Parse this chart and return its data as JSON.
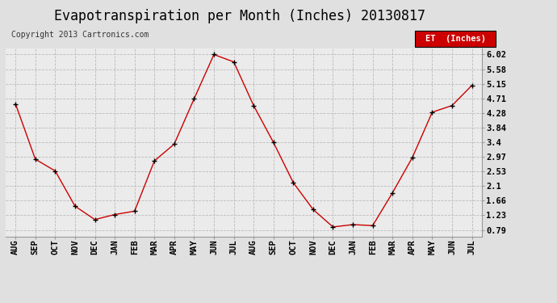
{
  "title": "Evapotranspiration per Month (Inches) 20130817",
  "copyright": "Copyright 2013 Cartronics.com",
  "legend_label": "ET  (Inches)",
  "legend_bg": "#cc0000",
  "legend_text_color": "#ffffff",
  "months": [
    "AUG",
    "SEP",
    "OCT",
    "NOV",
    "DEC",
    "JAN",
    "FEB",
    "MAR",
    "APR",
    "MAY",
    "JUN",
    "JUL",
    "AUG",
    "SEP",
    "OCT",
    "NOV",
    "DEC",
    "JAN",
    "FEB",
    "MAR",
    "APR",
    "MAY",
    "JUN",
    "JUL"
  ],
  "values": [
    4.55,
    2.9,
    2.55,
    1.5,
    1.1,
    1.25,
    1.35,
    2.85,
    3.35,
    4.7,
    6.02,
    5.8,
    4.5,
    3.4,
    2.2,
    1.4,
    0.88,
    0.95,
    0.92,
    1.9,
    2.95,
    4.3,
    4.5,
    5.1
  ],
  "yticks": [
    0.79,
    1.23,
    1.66,
    2.1,
    2.53,
    2.97,
    3.4,
    3.84,
    4.28,
    4.71,
    5.15,
    5.58,
    6.02
  ],
  "ymin": 0.6,
  "ymax": 6.2,
  "line_color": "#cc0000",
  "marker": "+",
  "marker_color": "#000000",
  "bg_color": "#e0e0e0",
  "plot_bg_color": "#ebebeb",
  "grid_color": "#bbbbbb",
  "title_fontsize": 12,
  "tick_fontsize": 7.5,
  "copyright_fontsize": 7
}
